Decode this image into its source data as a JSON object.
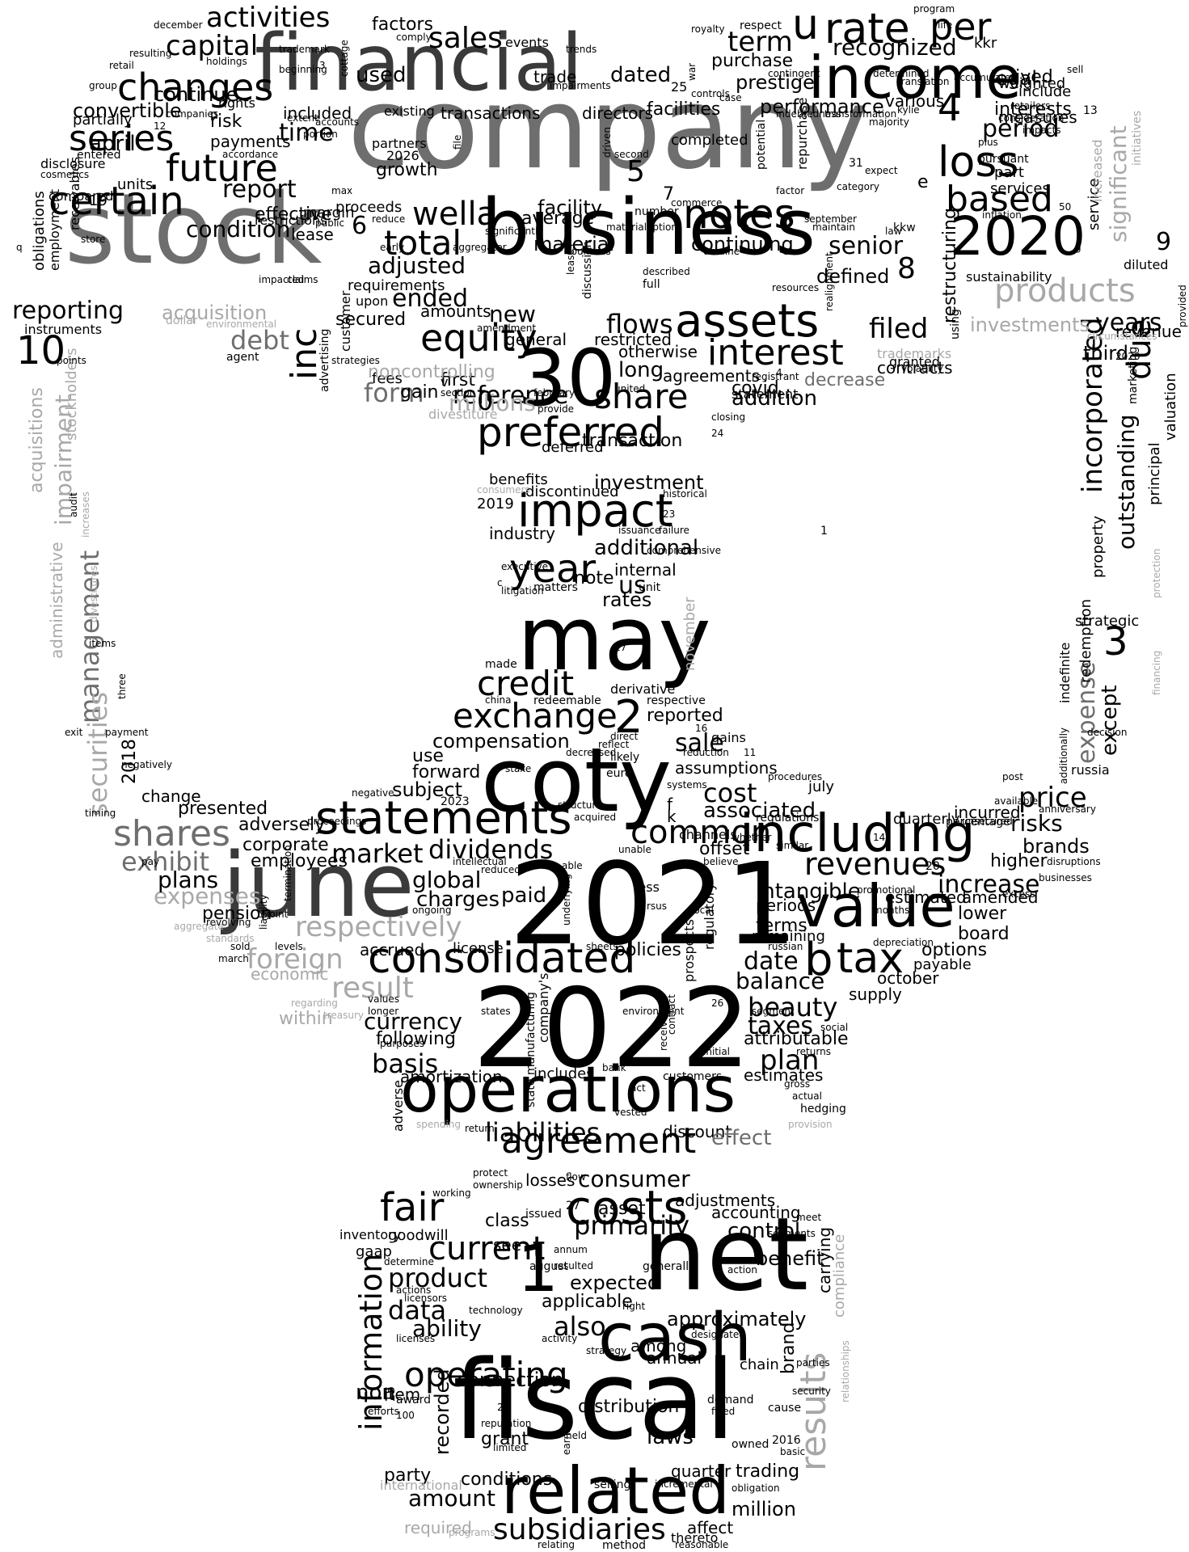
{
  "palette": [
    "#000000",
    "#3a3a3a",
    "#6e6e6e",
    "#a8a8a8"
  ],
  "words": {
    "company": "company",
    "stock": "stock",
    "business": "business",
    "financial": "financial",
    "income": "income",
    "w2021": "2021",
    "w2022": "2022",
    "fiscal": "fiscal",
    "net": "net",
    "june": "june",
    "may": "may",
    "coty": "coty",
    "operations": "operations",
    "w30": "30",
    "w2020": "2020",
    "assets": "assets",
    "cash": "cash",
    "related": "related",
    "including": "including",
    "value": "value",
    "consolidated": "consolidated",
    "statements": "statements",
    "preferred": "preferred",
    "impact": "impact",
    "agreement": "agreement",
    "costs": "costs",
    "year": "year",
    "notes": "notes",
    "interest": "interest",
    "equity": "equity",
    "certain": "certain",
    "series": "series",
    "future": "future",
    "changes": "changes",
    "loss": "loss",
    "based": "based",
    "rate": "rate",
    "per": "per",
    "total": "total",
    "wella": "wella",
    "credit": "credit",
    "exchange": "exchange",
    "share": "share",
    "products": "products",
    "shares": "shares",
    "common": "common",
    "revenues": "revenues",
    "tax": "tax",
    "b": "b",
    "fair": "fair",
    "current": "current",
    "subsidiaries": "subsidiaries",
    "liabilities": "liabilities",
    "dividends": "dividends",
    "market": "market",
    "result": "result",
    "respectively": "respectively",
    "foreign": "foreign",
    "results": "results",
    "information": "information",
    "operating": "operating",
    "activities": "activities",
    "capital": "capital",
    "sales": "sales",
    "term": "term",
    "recognized": "recognized",
    "reporting": "reporting",
    "inc": "inc",
    "due": "due",
    "incorporated": "incorporated",
    "outstanding": "outstanding",
    "significant": "significant",
    "years": "years",
    "third": "third",
    "filed": "filed",
    "senior": "senior",
    "ended": "ended",
    "adjusted": "adjusted",
    "flows": "flows",
    "form": "form",
    "reference": "reference",
    "millions": "millions",
    "management": "management",
    "impairment": "impairment",
    "securities": "securities",
    "acquisitions": "acquisitions",
    "administrative": "administrative",
    "exhibit": "exhibit",
    "expenses": "expenses",
    "plans": "plans",
    "global": "global",
    "charges": "charges",
    "paid": "paid",
    "consumer": "consumer",
    "primarily": "primarily",
    "product": "product",
    "data": "data",
    "also": "also",
    "ability": "ability",
    "connection": "connection",
    "amount": "amount",
    "conditions": "conditions",
    "distribution": "distribution",
    "laws": "laws",
    "million": "million",
    "beauty": "beauty",
    "taxes": "taxes",
    "plan": "plan",
    "balance": "balance",
    "date": "date",
    "currency": "currency",
    "basis": "basis",
    "following": "following",
    "intangible": "intangible",
    "increase": "increase",
    "price": "price",
    "risks": "risks",
    "brands": "brands",
    "expense": "expense",
    "except": "except",
    "cost": "cost",
    "associated": "associated",
    "sale": "sale",
    "compensation": "compensation",
    "additional": "additional",
    "investment": "investment",
    "transaction": "transaction",
    "addition": "addition",
    "long": "long",
    "new": "new",
    "debt": "debt",
    "acquisition": "acquisition",
    "investments": "investments",
    "performance": "performance",
    "continuing": "continuing",
    "material": "material",
    "facility": "facility",
    "average": "average",
    "report": "report",
    "condition": "condition",
    "time": "time",
    "april": "april",
    "convertible": "convertible",
    "continue": "continue",
    "dated": "dated",
    "used": "used",
    "factors": "factors",
    "purchase": "purchase",
    "prestige": "prestige",
    "legal": "legal",
    "period": "period",
    "interests": "interests",
    "measures": "measures",
    "restructuring": "restructuring",
    "defined": "defined",
    "contracts": "contracts",
    "decrease": "decrease",
    "revenue": "revenue",
    "valuation": "valuation",
    "marketing": "marketing",
    "principal": "principal",
    "property": "property",
    "redemption": "redemption",
    "strategic": "strategic",
    "stockholders": "stockholders",
    "w2018": "2018",
    "w2019": "2019",
    "presented": "presented",
    "change": "change",
    "adversely": "adversely",
    "corporate": "corporate",
    "employees": "employees",
    "pension": "pension",
    "economic": "economic",
    "within": "within",
    "accrued": "accrued",
    "license": "license",
    "policies": "policies",
    "reported": "reported",
    "assumptions": "assumptions",
    "forward": "forward",
    "subject": "subject",
    "use": "use",
    "rates": "rates",
    "note": "note",
    "internal": "internal",
    "industry": "industry",
    "us": "us",
    "first": "first",
    "gain": "gain",
    "fees": "fees",
    "otherwise": "otherwise",
    "agreements": "agreements",
    "covid": "covid",
    "statement": "statement",
    "restricted": "restricted",
    "general": "general",
    "amounts": "amounts",
    "secured": "secured",
    "requirements": "requirements",
    "obligations": "obligations",
    "instruments": "instruments",
    "employment": "employment",
    "receivables": "receivables",
    "restrictions": "restrictions",
    "effective": "effective",
    "lease": "lease",
    "margin": "margin",
    "proceeds": "proceeds",
    "growth": "growth",
    "units": "units",
    "compared": "compared",
    "partially": "partially",
    "rights": "rights",
    "risk": "risk",
    "payments": "payments",
    "included": "included",
    "trade": "trade",
    "transactions": "transactions",
    "directors": "directors",
    "facilities": "facilities",
    "completed": "completed",
    "various": "various",
    "weighted": "weighted",
    "lived": "lived",
    "kkr": "kkr",
    "include": "include",
    "services": "services",
    "part": "part",
    "sustainability": "sustainability",
    "service": "service",
    "diluted": "diluted",
    "increased": "increased",
    "initiatives": "initiatives",
    "trademarks": "trademarks",
    "granted": "granted",
    "inventory": "inventory",
    "gaap": "gaap",
    "goodwill": "goodwill",
    "class": "class",
    "asset": "asset",
    "see": "see",
    "losses": "losses",
    "adjustments": "adjustments",
    "accounting": "accounting",
    "control": "control",
    "benefit": "benefit",
    "expected": "expected",
    "applicable": "applicable",
    "among": "among",
    "approximately": "approximately",
    "annual": "annual",
    "brand": "brand",
    "carrying": "carrying",
    "compliance": "compliance",
    "chain": "chain",
    "trading": "trading",
    "quarter": "quarter",
    "affect": "affect",
    "recorded": "recorded",
    "non": "non",
    "item": "item",
    "party": "party",
    "required": "required",
    "international": "international",
    "grant": "grant",
    "discount": "discount",
    "effect": "effect",
    "amortization": "amortization",
    "includes": "includes",
    "estimates": "estimates",
    "attributable": "attributable",
    "supply": "supply",
    "options": "options",
    "payable": "payable",
    "board": "board",
    "lower": "lower",
    "higher": "higher",
    "amended": "amended",
    "incurred": "incurred",
    "estimated": "estimated",
    "terms": "terms",
    "remaining": "remaining",
    "periods": "periods",
    "october": "october",
    "quarterly": "quarterly",
    "july": "july",
    "offset": "offset",
    "channels": "channels",
    "discontinued": "discontinued",
    "benefits": "benefits",
    "deferred": "deferred",
    "noncontrolling": "noncontrolling",
    "divestiture": "divestiture",
    "u": "u",
    "n1": "1",
    "n2": "2",
    "n3": "3",
    "n4": "4",
    "n5": "5",
    "n6": "6",
    "n8": "8",
    "n9": "9",
    "n10": "10",
    "n0": "0",
    "e": "e",
    "f": "f",
    "k": "k",
    "v": "v",
    "russia": "russia",
    "indefinite": "indefinite",
    "made": "made",
    "derivative": "derivative",
    "respective": "respective",
    "november": "november",
    "euro": "euro",
    "gains": "gains",
    "failure": "failure",
    "issuance": "issuance",
    "executive": "executive",
    "matters": "matters",
    "litigation": "litigation",
    "unit": "unit",
    "historical": "historical",
    "closing": "closing",
    "provide": "provide",
    "february": "february",
    "united": "united",
    "section": "section",
    "customer": "customer",
    "advertising": "advertising",
    "agent": "agent",
    "dollar": "dollar",
    "points": "points",
    "store": "store",
    "upon": "upon",
    "early": "early",
    "reduce": "reduce",
    "significantly": "significantly",
    "aggregator": "aggregator",
    "countries": "countries",
    "leases": "leases",
    "discussion": "discussion",
    "described": "described",
    "full": "full",
    "ukraine": "ukraine",
    "resources": "resources",
    "realignment": "realignment",
    "registrant": "registrant",
    "commerce": "commerce",
    "number": "number",
    "option": "option",
    "materials": "materials",
    "factor": "factor",
    "september": "september",
    "maintain": "maintain",
    "law": "law",
    "expect": "expect",
    "category": "category",
    "inflation": "inflation",
    "impacts": "impacts",
    "pursuant": "pursuant",
    "consideration": "consideration",
    "transformation": "transformation",
    "translation": "translation",
    "accumulated": "accumulated",
    "indebtedness": "indebtedness",
    "majority": "majority",
    "determined": "determined",
    "retailers": "retailers",
    "sell": "sell",
    "program": "program",
    "royalty": "royalty",
    "respect": "respect",
    "life": "life",
    "contingent": "contingent",
    "controls": "controls",
    "case": "case",
    "war": "war",
    "trends": "trends",
    "impairments": "impairments",
    "events": "events",
    "comply": "comply",
    "cottage": "cottage",
    "trademark": "trademark",
    "beginning": "beginning",
    "holdings": "holdings",
    "resulting": "resulting",
    "december": "december",
    "retail": "retail",
    "group": "group",
    "companies": "companies",
    "disclosure": "disclosure",
    "cosmetics": "cosmetics",
    "entered": "entered",
    "accordance": "accordance",
    "partners": "partners",
    "existing": "existing",
    "portion": "portion",
    "public": "public",
    "claims": "claims",
    "max": "max",
    "accounts": "accounts",
    "extent": "extent",
    "impacted": "impacted",
    "environmental": "environmental",
    "strategies": "strategies",
    "amendment": "amendment",
    "consumers": "consumers",
    "comprehensive": "comprehensive",
    "china": "china",
    "redeemable": "redeemable",
    "direct": "direct",
    "reflect": "reflect",
    "likely": "likely",
    "decreased": "decreased",
    "reduction": "reduction",
    "whether": "whether",
    "procedures": "procedures",
    "similar": "similar",
    "regulations": "regulations",
    "unsecured": "unsecured",
    "percentage": "percentage",
    "available": "available",
    "post": "post",
    "anniversary": "anniversary",
    "decision": "decision",
    "additionally": "additionally",
    "protection": "protection",
    "financing": "financing",
    "circumstances": "circumstances",
    "provided": "provided",
    "disruptions": "disruptions",
    "businesses": "businesses",
    "excess": "excess",
    "promotional": "promotional",
    "depreciation": "depreciation",
    "months": "months",
    "segment": "segment",
    "social": "social",
    "returns": "returns",
    "gross": "gross",
    "actual": "actual",
    "hedging": "hedging",
    "provision": "provision",
    "initial": "initial",
    "bank": "bank",
    "act": "act",
    "vested": "vested",
    "environment": "environment",
    "contract": "contract",
    "received": "received",
    "states": "states",
    "longer": "longer",
    "values": "values",
    "regarding": "regarding",
    "treasury": "treasury",
    "levels": "levels",
    "sold": "sold",
    "march": "march",
    "aggregate": "aggregate",
    "revolving": "revolving",
    "standards": "standards",
    "ongoing": "ongoing",
    "liability": "liability",
    "termination": "termination",
    "joint": "joint",
    "intellectual": "intellectual",
    "reduced": "reduced",
    "unable": "unable",
    "able": "able",
    "believe": "believe",
    "acquired": "acquired",
    "systems": "systems",
    "stake": "stake",
    "structure": "structure",
    "negative": "negative",
    "proceedings": "proceedings",
    "pay": "pay",
    "timing": "timing",
    "negatively": "negatively",
    "payment": "payment",
    "exit": "exit",
    "three": "three",
    "items": "items",
    "audit": "audit",
    "increases": "increases",
    "divestitures": "divestitures",
    "working": "working",
    "protect": "protect",
    "ownership": "ownership",
    "flow": "flow",
    "issued": "issued",
    "annum": "annum",
    "determine": "determine",
    "resulted": "resulted",
    "august": "august",
    "actions": "actions",
    "licensors": "licensors",
    "technology": "technology",
    "right": "right",
    "designated": "designated",
    "action": "action",
    "generally": "generally",
    "meet": "meet",
    "segments": "segments",
    "licenses": "licenses",
    "activity": "activity",
    "strategy": "strategy",
    "parties": "parties",
    "security": "security",
    "relationships": "relationships",
    "award": "award",
    "efforts": "efforts",
    "fixed": "fixed",
    "demand": "demand",
    "cause": "cause",
    "reputation": "reputation",
    "limited": "limited",
    "held": "held",
    "earnings": "earnings",
    "owned": "owned",
    "basic": "basic",
    "selling": "selling",
    "incremental": "incremental",
    "obligation": "obligation",
    "thereto": "thereto",
    "reasonable": "reasonable",
    "relating": "relating",
    "method": "method",
    "programs": "programs",
    "spending": "spending",
    "return": "return",
    "state": "state",
    "adverse": "adverse",
    "manufacturing": "manufacturing",
    "customers": "customers",
    "companys": "company's",
    "local": "local",
    "regulatory": "regulatory",
    "prospects": "prospects",
    "russian": "russian",
    "rsus": "rsus",
    "less": "less",
    "sheets": "sheets",
    "purposes": "purposes",
    "underlying": "underlying",
    "file": "file",
    "driven": "driven",
    "second": "second",
    "potential": "potential",
    "repurchase": "repurchase",
    "using": "using",
    "kylie": "kylie",
    "plus": "plus",
    "volatility": "volatility",
    "kkw": "kkw",
    "q": "q",
    "p": "p",
    "c": "c",
    "g": "g",
    "n2020b": "2020",
    "n2023": "2023",
    "n2026": "2026",
    "n2016": "2016",
    "n7": "7",
    "n11": "11",
    "n12": "12",
    "n13": "13",
    "n14": "14",
    "n15": "15",
    "n16": "16",
    "n17": "17",
    "n19": "19",
    "n20": "20",
    "n21": "21",
    "n23": "23",
    "n24": "24",
    "n25": "25",
    "n26": "26",
    "n27": "27",
    "n31": "31",
    "n50": "50",
    "n100": "100",
    "n1b": "1",
    "n3b": "3",
    "n4b": "4"
  }
}
